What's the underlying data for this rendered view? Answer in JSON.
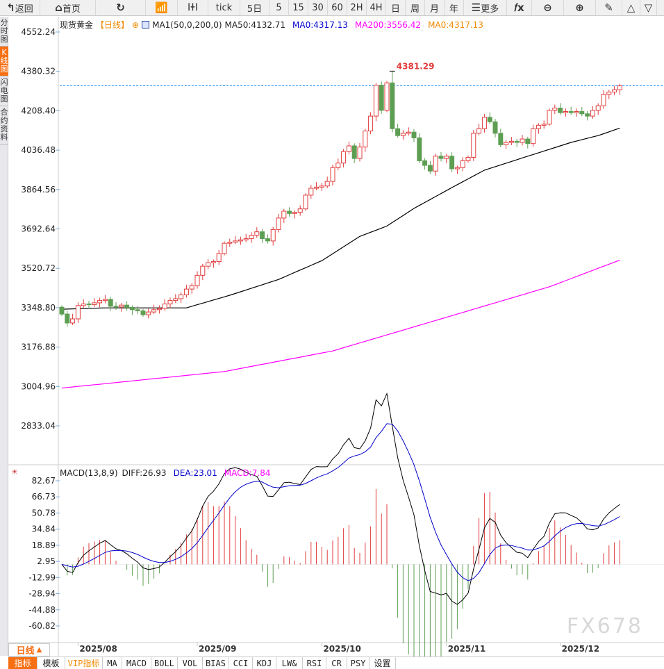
{
  "toolbar": {
    "items": [
      {
        "label": "返回",
        "icon": "back-arrow-icon",
        "w": 58
      },
      {
        "label": "首页",
        "icon": "home-icon",
        "w": 80
      },
      {
        "label": "",
        "icon": "refresh-icon",
        "w": 72
      },
      {
        "label": "",
        "icon": "bar-chart-icon",
        "w": 46
      },
      {
        "label": "",
        "icon": "candlestick-icon",
        "w": 44
      },
      {
        "label": "tick",
        "w": 46
      },
      {
        "label": "5日",
        "w": 42
      },
      {
        "label": "5",
        "w": 28
      },
      {
        "label": "15",
        "w": 28
      },
      {
        "label": "30",
        "w": 28
      },
      {
        "label": "60",
        "w": 28
      },
      {
        "label": "2H",
        "w": 28
      },
      {
        "label": "4H",
        "w": 28
      },
      {
        "label": "日",
        "w": 28
      },
      {
        "label": "周",
        "w": 28
      },
      {
        "label": "月",
        "w": 28
      },
      {
        "label": "年",
        "w": 28
      },
      {
        "label": "更多",
        "icon": "menu-icon",
        "w": 62
      },
      {
        "label": "",
        "icon": "fx-icon",
        "w": 36
      },
      {
        "label": "",
        "icon": "zoom-out-icon",
        "w": 46
      },
      {
        "label": "",
        "icon": "zoom-in-icon",
        "w": 46
      },
      {
        "label": "",
        "icon": "pen-icon",
        "w": 38
      },
      {
        "label": "",
        "icon": "triangle-up-icon",
        "w": 26
      },
      {
        "label": "",
        "icon": "triangle-down-icon",
        "w": 24
      }
    ]
  },
  "sidebar": {
    "tabs": [
      {
        "label": "分时图"
      },
      {
        "label": "K线图",
        "active": true
      },
      {
        "label": "闪电图"
      },
      {
        "label": "合约资料"
      }
    ]
  },
  "legend": {
    "symbol": "现货黄金",
    "period": "【日线】",
    "indicator": "MA1(50,0,200,0)",
    "ma50": "MA50:4132.71",
    "ma0": "MA0:4317.13",
    "ma200": "MA200:3556.42",
    "ma0b": "MA0:4317.13"
  },
  "macd_legend": {
    "name": "MACD(13,8,9)",
    "diff": "DIFF:26.93",
    "dea": "DEA:23.01",
    "macd": "MACD:7.84"
  },
  "colors": {
    "up": "#e23b3b",
    "down": "#5d9e52",
    "ma50": "#000000",
    "ma200": "#ff00ff",
    "last_line": "#1e90ff",
    "diff": "#000000",
    "dea": "#0000cc",
    "accent": "#f66f12"
  },
  "chart_data": {
    "type": "candlestick",
    "price_ticks": [
      "4552.24",
      "4380.32",
      "4208.40",
      "4036.48",
      "3864.56",
      "3692.64",
      "3520.72",
      "3348.80",
      "3176.88",
      "3004.96",
      "2833.04"
    ],
    "price_range": [
      2833.04,
      4552.24
    ],
    "macd_ticks": [
      "82.67",
      "66.73",
      "50.78",
      "34.84",
      "18.89",
      "2.95",
      "-12.99",
      "-28.94",
      "-44.88",
      "-60.82"
    ],
    "macd_range": [
      -60.82,
      82.67
    ],
    "x_labels": [
      {
        "label": "2025/08",
        "index": 3
      },
      {
        "label": "2025/09",
        "index": 25
      },
      {
        "label": "2025/10",
        "index": 48
      },
      {
        "label": "2025/11",
        "index": 71
      },
      {
        "label": "2025/12",
        "index": 92
      }
    ],
    "max_label": "4381.29",
    "max_index": 61,
    "last_price": 4317.13,
    "close": [
      3321,
      3282,
      3300,
      3358,
      3365,
      3362,
      3370,
      3380,
      3385,
      3355,
      3352,
      3360,
      3350,
      3340,
      3335,
      3318,
      3330,
      3340,
      3345,
      3365,
      3380,
      3388,
      3405,
      3430,
      3445,
      3490,
      3530,
      3545,
      3550,
      3585,
      3630,
      3635,
      3640,
      3645,
      3650,
      3665,
      3680,
      3650,
      3640,
      3690,
      3740,
      3770,
      3760,
      3765,
      3780,
      3840,
      3870,
      3875,
      3880,
      3900,
      3960,
      3980,
      4030,
      4055,
      4000,
      4050,
      4120,
      4185,
      4320,
      4210,
      4330,
      4130,
      4100,
      4110,
      4115,
      4090,
      3990,
      3970,
      3945,
      4010,
      4000,
      4010,
      3955,
      3960,
      3990,
      4005,
      4110,
      4130,
      4180,
      4160,
      4110,
      4060,
      4070,
      4075,
      4070,
      4085,
      4065,
      4130,
      4145,
      4150,
      4210,
      4220,
      4200,
      4205,
      4200,
      4205,
      4195,
      4185,
      4210,
      4230,
      4280,
      4290,
      4300,
      4317
    ],
    "ma50": [
      [
        0,
        3342
      ],
      [
        8,
        3348
      ],
      [
        23,
        3348
      ],
      [
        31,
        3403
      ],
      [
        40,
        3472
      ],
      [
        48,
        3554
      ],
      [
        55,
        3660
      ],
      [
        60,
        3705
      ],
      [
        65,
        3782
      ],
      [
        72,
        3873
      ],
      [
        78,
        3949
      ],
      [
        86,
        4010
      ],
      [
        94,
        4070
      ],
      [
        99,
        4100
      ],
      [
        103,
        4132.71
      ]
    ],
    "ma200": [
      [
        0,
        2998
      ],
      [
        30,
        3070
      ],
      [
        50,
        3160
      ],
      [
        70,
        3300
      ],
      [
        90,
        3440
      ],
      [
        103,
        3556.42
      ]
    ]
  },
  "period_selector": {
    "label": "日线",
    "icon": "triangle-up-icon"
  },
  "bottombar": {
    "tabs": [
      {
        "label": "指标",
        "w": 42,
        "active": true
      },
      {
        "label": "模板",
        "w": 40
      },
      {
        "label": "VIP指标",
        "w": 54,
        "vip": true
      },
      {
        "label": "MA",
        "w": 28
      },
      {
        "label": "MACD",
        "w": 42
      },
      {
        "label": "BOLL",
        "w": 38
      },
      {
        "label": "VOL",
        "w": 36
      },
      {
        "label": "BIAS",
        "w": 38
      },
      {
        "label": "CCI",
        "w": 34
      },
      {
        "label": "KDJ",
        "w": 34
      },
      {
        "label": "LW&",
        "w": 38
      },
      {
        "label": "RSI",
        "w": 34
      },
      {
        "label": "CR",
        "w": 30
      },
      {
        "label": "PSY",
        "w": 32
      },
      {
        "label": "设置",
        "w": 38
      }
    ]
  },
  "watermark": "FX678"
}
